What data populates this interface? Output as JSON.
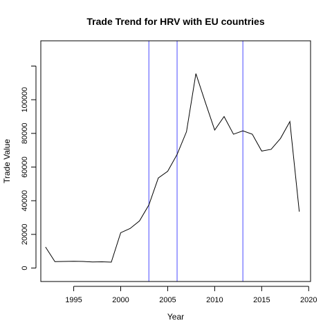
{
  "chart_data": {
    "type": "line",
    "title": "Trade Trend for HRV with EU countries",
    "xlabel": "Year",
    "ylabel": "Trade Value",
    "xlim": [
      1991.5,
      2020.2
    ],
    "ylim": [
      -8000,
      135000
    ],
    "x_ticks": [
      1995,
      2000,
      2005,
      2010,
      2015,
      2020
    ],
    "y_ticks": [
      0,
      20000,
      40000,
      60000,
      80000,
      100000,
      120000
    ],
    "y_tick_labels": [
      "0",
      "20000",
      "40000",
      "60000",
      "80000",
      "100000",
      ""
    ],
    "grid": false,
    "line_color": "#000000",
    "vline_color": "#6666ff",
    "vertical_lines": [
      2003,
      2006,
      2013
    ],
    "series": [
      {
        "x": [
          1992,
          1993,
          1994,
          1995,
          1996,
          1997,
          1998,
          1999,
          2000,
          2001,
          2002,
          2003,
          2004,
          2005,
          2006,
          2007,
          2008,
          2009,
          2010,
          2011,
          2012,
          2013,
          2014,
          2015,
          2016,
          2017,
          2018,
          2019
        ],
        "values": [
          12500,
          3800,
          3900,
          4000,
          3900,
          3600,
          3700,
          3500,
          21000,
          23500,
          28000,
          37500,
          53500,
          57500,
          67500,
          81000,
          115500,
          98500,
          82000,
          90000,
          79500,
          81500,
          79500,
          69500,
          70500,
          77000,
          87000,
          33500
        ]
      }
    ]
  }
}
